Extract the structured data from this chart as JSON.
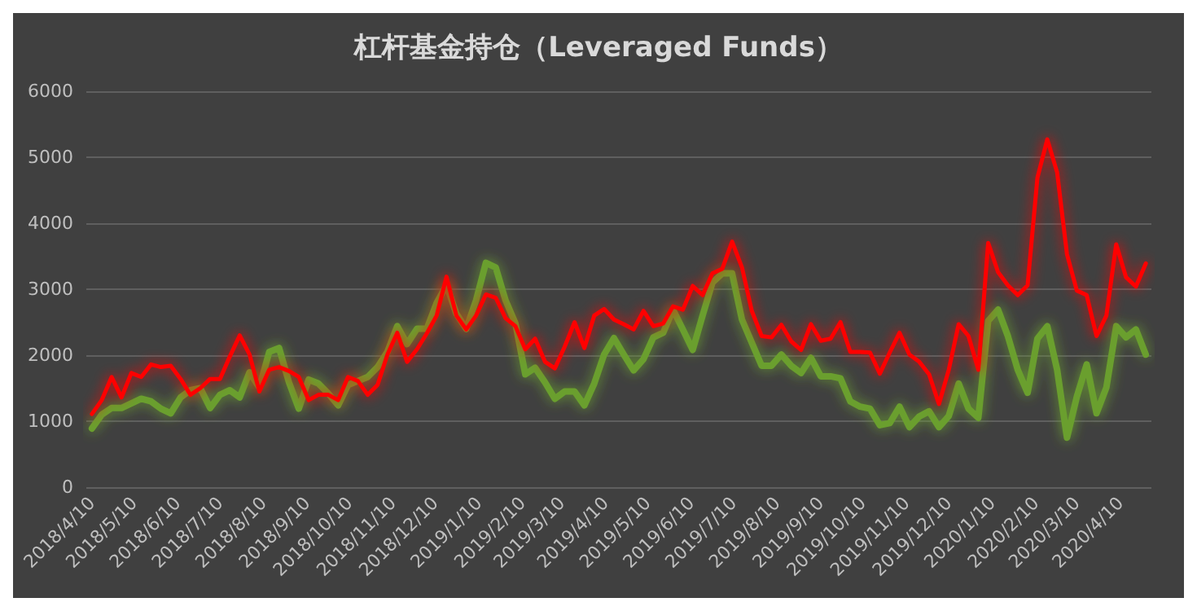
{
  "chart_data": {
    "type": "line",
    "title": "杠杆基金持仓（Leveraged Funds）",
    "x": [
      "2018-04-10",
      "2018-04-17",
      "2018-04-24",
      "2018-05-01",
      "2018-05-08",
      "2018-05-15",
      "2018-05-22",
      "2018-05-29",
      "2018-06-05",
      "2018-06-12",
      "2018-06-19",
      "2018-06-26",
      "2018-07-03",
      "2018-07-10",
      "2018-07-17",
      "2018-07-24",
      "2018-07-31",
      "2018-08-07",
      "2018-08-14",
      "2018-08-21",
      "2018-08-28",
      "2018-09-04",
      "2018-09-11",
      "2018-09-18",
      "2018-09-25",
      "2018-10-02",
      "2018-10-09",
      "2018-10-16",
      "2018-10-23",
      "2018-10-30",
      "2018-11-06",
      "2018-11-13",
      "2018-11-20",
      "2018-11-27",
      "2018-12-04",
      "2018-12-11",
      "2018-12-18",
      "2018-12-25",
      "2019-01-01",
      "2019-01-08",
      "2019-01-15",
      "2019-01-22",
      "2019-01-29",
      "2019-02-05",
      "2019-02-12",
      "2019-02-19",
      "2019-02-26",
      "2019-03-05",
      "2019-03-12",
      "2019-03-19",
      "2019-03-26",
      "2019-04-02",
      "2019-04-09",
      "2019-04-16",
      "2019-04-23",
      "2019-04-30",
      "2019-05-07",
      "2019-05-14",
      "2019-05-21",
      "2019-05-28",
      "2019-06-04",
      "2019-06-11",
      "2019-06-18",
      "2019-06-25",
      "2019-07-02",
      "2019-07-09",
      "2019-07-16",
      "2019-07-23",
      "2019-07-30",
      "2019-08-06",
      "2019-08-13",
      "2019-08-20",
      "2019-08-27",
      "2019-09-03",
      "2019-09-10",
      "2019-09-17",
      "2019-09-24",
      "2019-10-01",
      "2019-10-08",
      "2019-10-15",
      "2019-10-22",
      "2019-10-29",
      "2019-11-05",
      "2019-11-12",
      "2019-11-19",
      "2019-11-26",
      "2019-12-03",
      "2019-12-10",
      "2019-12-17",
      "2019-12-24",
      "2019-12-31",
      "2020-01-07",
      "2020-01-14",
      "2020-01-21",
      "2020-01-28",
      "2020-02-04",
      "2020-02-11",
      "2020-02-18",
      "2020-02-25",
      "2020-03-03",
      "2020-03-10",
      "2020-03-17",
      "2020-03-24",
      "2020-03-31",
      "2020-04-07",
      "2020-04-14",
      "2020-04-21",
      "2020-04-28"
    ],
    "series": [
      {
        "color": "#6a9f2f",
        "values": [
          890,
          1100,
          1200,
          1200,
          1270,
          1340,
          1300,
          1190,
          1120,
          1360,
          1470,
          1500,
          1200,
          1400,
          1470,
          1360,
          1740,
          1510,
          2050,
          2110,
          1590,
          1190,
          1630,
          1570,
          1420,
          1240,
          1550,
          1610,
          1670,
          1820,
          2050,
          2440,
          2170,
          2400,
          2400,
          2790,
          3060,
          2630,
          2400,
          2830,
          3400,
          3330,
          2830,
          2480,
          1710,
          1810,
          1590,
          1340,
          1450,
          1450,
          1240,
          1570,
          2010,
          2260,
          2010,
          1770,
          1940,
          2270,
          2340,
          2690,
          2390,
          2080,
          2600,
          3100,
          3240,
          3240,
          2540,
          2190,
          1840,
          1840,
          2010,
          1840,
          1730,
          1960,
          1680,
          1680,
          1650,
          1300,
          1220,
          1190,
          940,
          970,
          1220,
          910,
          1070,
          1150,
          910,
          1080,
          1570,
          1190,
          1050,
          2520,
          2690,
          2290,
          1780,
          1430,
          2250,
          2440,
          1780,
          750,
          1370,
          1860,
          1120,
          1510,
          2440,
          2270,
          2390,
          2010
        ]
      },
      {
        "color": "#ff0000",
        "values": [
          1110,
          1320,
          1670,
          1360,
          1730,
          1670,
          1860,
          1820,
          1840,
          1640,
          1400,
          1500,
          1640,
          1640,
          1980,
          2300,
          2010,
          1450,
          1780,
          1820,
          1760,
          1670,
          1320,
          1400,
          1400,
          1320,
          1670,
          1610,
          1400,
          1550,
          2010,
          2340,
          1900,
          2090,
          2330,
          2600,
          3190,
          2600,
          2390,
          2600,
          2920,
          2870,
          2560,
          2440,
          2090,
          2250,
          1900,
          1800,
          2130,
          2500,
          2110,
          2600,
          2700,
          2540,
          2470,
          2390,
          2670,
          2440,
          2480,
          2740,
          2690,
          3050,
          2910,
          3240,
          3310,
          3720,
          3330,
          2670,
          2290,
          2270,
          2460,
          2210,
          2080,
          2470,
          2220,
          2250,
          2500,
          2050,
          2050,
          2040,
          1720,
          2040,
          2340,
          2010,
          1900,
          1710,
          1260,
          1780,
          2470,
          2290,
          1780,
          3700,
          3260,
          3060,
          2910,
          3060,
          4690,
          5270,
          4770,
          3530,
          2980,
          2910,
          2290,
          2600,
          3680,
          3180,
          3040,
          3390
        ]
      }
    ],
    "ylim": [
      0,
      6000
    ],
    "yticks": [
      0,
      1000,
      2000,
      3000,
      4000,
      5000,
      6000
    ],
    "xlim": [
      "2018-04-06",
      "2020-05-02"
    ],
    "xticks": [
      {
        "value": "2018-04-10",
        "label": "2018/4/10"
      },
      {
        "value": "2018-05-10",
        "label": "2018/5/10"
      },
      {
        "value": "2018-06-10",
        "label": "2018/6/10"
      },
      {
        "value": "2018-07-10",
        "label": "2018/7/10"
      },
      {
        "value": "2018-08-10",
        "label": "2018/8/10"
      },
      {
        "value": "2018-09-10",
        "label": "2018/9/10"
      },
      {
        "value": "2018-10-10",
        "label": "2018/10/10"
      },
      {
        "value": "2018-11-10",
        "label": "2018/11/10"
      },
      {
        "value": "2018-12-10",
        "label": "2018/12/10"
      },
      {
        "value": "2019-01-10",
        "label": "2019/1/10"
      },
      {
        "value": "2019-02-10",
        "label": "2019/2/10"
      },
      {
        "value": "2019-03-10",
        "label": "2019/3/10"
      },
      {
        "value": "2019-04-10",
        "label": "2019/4/10"
      },
      {
        "value": "2019-05-10",
        "label": "2019/5/10"
      },
      {
        "value": "2019-06-10",
        "label": "2019/6/10"
      },
      {
        "value": "2019-07-10",
        "label": "2019/7/10"
      },
      {
        "value": "2019-08-10",
        "label": "2019/8/10"
      },
      {
        "value": "2019-09-10",
        "label": "2019/9/10"
      },
      {
        "value": "2019-10-10",
        "label": "2019/10/10"
      },
      {
        "value": "2019-11-10",
        "label": "2019/11/10"
      },
      {
        "value": "2019-12-10",
        "label": "2019/12/10"
      },
      {
        "value": "2020-01-10",
        "label": "2020/1/10"
      },
      {
        "value": "2020-02-10",
        "label": "2020/2/10"
      },
      {
        "value": "2020-03-10",
        "label": "2020/3/10"
      },
      {
        "value": "2020-04-10",
        "label": "2020/4/10"
      }
    ],
    "grid": "y",
    "marker": "none",
    "line_style": "solid"
  }
}
